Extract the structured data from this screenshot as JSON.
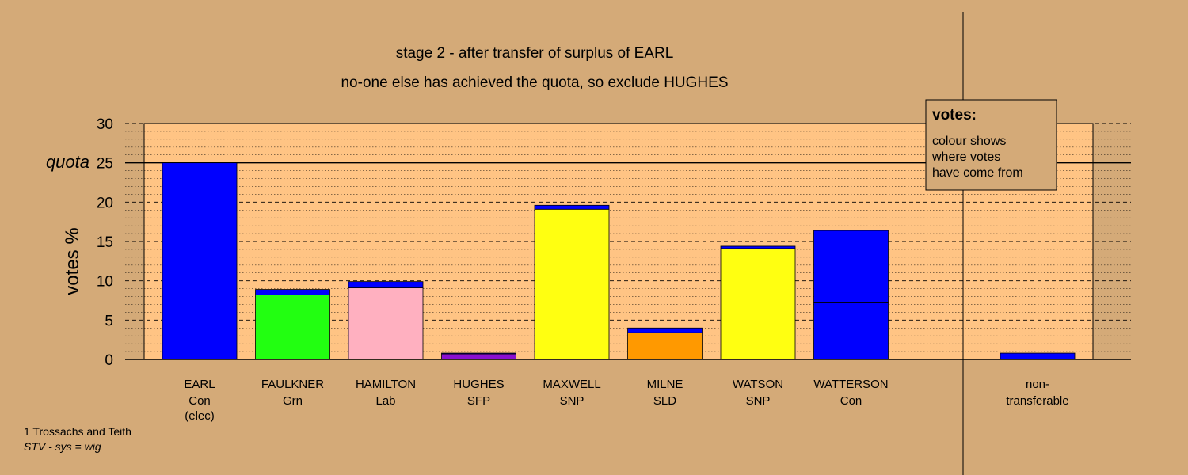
{
  "chart_data": {
    "type": "bar",
    "title": "stage 2 - after transfer of surplus of EARL",
    "subtitle": "no-one else has achieved the quota, so exclude HUGHES",
    "ylabel": "votes %",
    "ylim": [
      0,
      30
    ],
    "yticks": [
      "0",
      "5",
      "10",
      "15",
      "20",
      "25",
      "30"
    ],
    "quota_label": "quota",
    "quota": 25,
    "grid": true,
    "legend": {
      "title": "votes:",
      "lines": [
        "colour shows",
        "where votes",
        "have come from"
      ],
      "placement": "top-right"
    },
    "candidates": [
      {
        "name": "EARL",
        "party": "Con",
        "status": "(elec)",
        "segments": [
          {
            "value": 25.0,
            "color": "#0000ff"
          }
        ]
      },
      {
        "name": "FAULKNER",
        "party": "Grn",
        "status": "",
        "segments": [
          {
            "value": 8.2,
            "color": "#22ff11"
          },
          {
            "value": 0.7,
            "color": "#0000ff"
          }
        ]
      },
      {
        "name": "HAMILTON",
        "party": "Lab",
        "status": "",
        "segments": [
          {
            "value": 9.1,
            "color": "#ffb0c0"
          },
          {
            "value": 0.8,
            "color": "#0000ff"
          }
        ]
      },
      {
        "name": "HUGHES",
        "party": "SFP",
        "status": "",
        "segments": [
          {
            "value": 0.7,
            "color": "#8a10d0"
          },
          {
            "value": 0.1,
            "color": "#0000ff"
          }
        ]
      },
      {
        "name": "MAXWELL",
        "party": "SNP",
        "status": "",
        "segments": [
          {
            "value": 19.1,
            "color": "#ffff11"
          },
          {
            "value": 0.5,
            "color": "#0000ff"
          }
        ]
      },
      {
        "name": "MILNE",
        "party": "SLD",
        "status": "",
        "segments": [
          {
            "value": 3.4,
            "color": "#ff9900"
          },
          {
            "value": 0.6,
            "color": "#0000ff"
          }
        ]
      },
      {
        "name": "WATSON",
        "party": "SNP",
        "status": "",
        "segments": [
          {
            "value": 14.1,
            "color": "#ffff11"
          },
          {
            "value": 0.3,
            "color": "#0000ff"
          }
        ]
      },
      {
        "name": "WATTERSON",
        "party": "Con",
        "status": "",
        "segments": [
          {
            "value": 7.2,
            "color": "#0000ff"
          },
          {
            "value": 9.2,
            "color": "#0000ff"
          }
        ]
      }
    ],
    "nontransferable": {
      "line1": "non-",
      "line2": "transferable",
      "value": 0.8,
      "color": "#0000ff"
    }
  },
  "footer": {
    "constituency": "1 Trossachs and Teith",
    "system": "STV - sys = wig"
  },
  "colors": {
    "background": "#d4aa78",
    "plot": "#ffc484"
  }
}
